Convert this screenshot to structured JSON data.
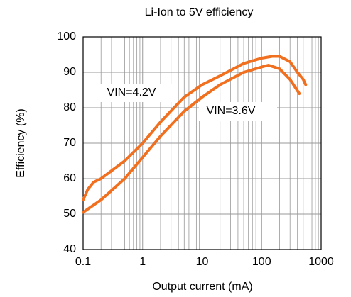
{
  "chart_data": {
    "type": "line",
    "title": "Li-Ion to 5V efficiency",
    "x_label": "Output current (mA)",
    "y_label": "Efficiency (%)",
    "log_x": true,
    "grid": true,
    "xlim": [
      0.1,
      1000
    ],
    "xticks": [
      0.1,
      1,
      10,
      100,
      1000
    ],
    "ylim": [
      40,
      100
    ],
    "yticks": [
      40,
      50,
      60,
      70,
      80,
      90,
      100
    ],
    "annotations": [
      "VIN=4.2V",
      "VIN=3.6V"
    ],
    "series": [
      {
        "name": "VIN=4.2V",
        "color": "#f07020",
        "x": [
          0.1,
          0.12,
          0.15,
          0.2,
          0.5,
          1,
          2,
          5,
          10,
          20,
          50,
          100,
          150,
          200,
          300,
          400,
          500,
          550
        ],
        "values": [
          54,
          57,
          59,
          60,
          65,
          70,
          76,
          83,
          86.5,
          89,
          92.5,
          94,
          94.5,
          94.5,
          93,
          90,
          88,
          86.5
        ]
      },
      {
        "name": "VIN=3.6V",
        "color": "#f07020",
        "x": [
          0.1,
          0.2,
          0.5,
          1,
          2,
          5,
          10,
          20,
          50,
          100,
          130,
          200,
          300,
          430
        ],
        "values": [
          50.5,
          54,
          60,
          66,
          72,
          79,
          83,
          86.5,
          90,
          91.5,
          92,
          91,
          88,
          84
        ]
      }
    ]
  }
}
